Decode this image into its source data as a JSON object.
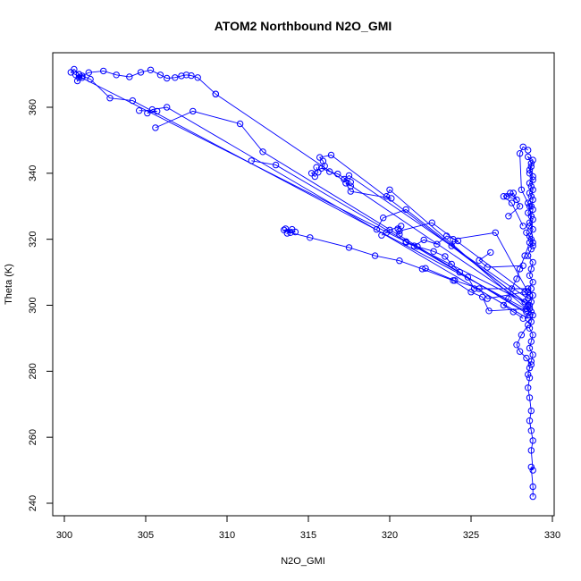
{
  "chart_data": {
    "type": "line",
    "title": "ATOM2 Northbound N2O_GMI",
    "xlabel": "N2O_GMI",
    "ylabel": "Theta (K)",
    "xlim": [
      300,
      330
    ],
    "ylim": [
      240,
      375
    ],
    "x_ticks": [
      300,
      305,
      310,
      315,
      320,
      325,
      330
    ],
    "y_ticks": [
      240,
      260,
      280,
      300,
      320,
      340,
      360
    ],
    "grid": false,
    "marker": "open-circle",
    "colors": {
      "series": "#0000ff",
      "axis": "#000000",
      "background": "#ffffff"
    },
    "series": [
      {
        "x": [
          328.8,
          328.8,
          328.7,
          328.8,
          328.7,
          328.8,
          328.7,
          328.6,
          328.7,
          328.6,
          328.5,
          328.6,
          328.5,
          328.6,
          328.7,
          328.8,
          328.6,
          328.7,
          328.8,
          328.6,
          328.7,
          328.8,
          328.6,
          328.7,
          328.8,
          328.5,
          328.8,
          328.6,
          328.7,
          328.8,
          328.5,
          328.7,
          328.8,
          328.6,
          328.8,
          328.6,
          328.7,
          328.8,
          328.5,
          328.7,
          328.8,
          328.6,
          328.8,
          328.6,
          328.7,
          328.5,
          328.8,
          328.7,
          328.6,
          328.8,
          328.7,
          328.6,
          328.8,
          328.7,
          328.5,
          328.8,
          328.6,
          328.4,
          328.7,
          328.8,
          328.6,
          328.1,
          328.0,
          328.2,
          328.5
        ],
        "y": [
          242,
          245,
          251,
          250,
          256,
          259,
          262,
          265,
          268,
          272,
          275,
          278,
          279,
          281,
          283,
          285,
          287,
          289,
          291,
          293,
          295,
          297,
          299,
          301,
          303,
          305,
          307,
          309,
          311,
          313,
          315,
          317,
          319,
          321,
          323,
          325,
          327,
          329,
          331,
          333,
          335,
          337,
          339,
          341,
          343,
          345,
          344,
          342,
          340,
          338,
          336,
          334,
          332,
          330,
          328,
          326,
          324,
          322,
          320,
          318,
          330,
          335,
          346,
          348,
          347
        ]
      },
      {
        "x": [
          328.2,
          327.5,
          327.0,
          327.4,
          327.8,
          327.2,
          327.6,
          328.0,
          327.3
        ],
        "y": [
          324,
          331,
          333,
          334,
          332,
          333,
          334,
          330,
          327
        ]
      },
      {
        "x": [
          328.6,
          328.3,
          328.0,
          327.8,
          327.5,
          327.3,
          327.0,
          327.6,
          328.2
        ],
        "y": [
          319,
          315,
          311,
          308,
          305,
          302,
          300,
          298,
          296
        ]
      },
      {
        "x": [
          328.5,
          328.1,
          327.8,
          328.0,
          328.4,
          328.7
        ],
        "y": [
          294,
          291,
          288,
          286,
          284,
          282
        ]
      },
      {
        "x": [
          328.6,
          316.4,
          315.7,
          315.9,
          316.0
        ],
        "y": [
          300,
          345.5,
          344.8,
          343.7,
          342.2
        ]
      },
      {
        "x": [
          328.5,
          317.5,
          317.2,
          317.6,
          316.8,
          316.3,
          315.8,
          315.2,
          315.4,
          315.6,
          315.5
        ],
        "y": [
          302,
          339.3,
          338.2,
          337.3,
          339.8,
          340.5,
          341.5,
          340.0,
          339.0,
          340.3,
          341.8
        ]
      },
      {
        "x": [
          328.4,
          320.0,
          319.8,
          320.1,
          317.6,
          317.3,
          317.6
        ],
        "y": [
          299,
          335.0,
          333.0,
          332.4,
          334.5,
          337.0,
          336.1
        ]
      },
      {
        "x": [
          328.3,
          321.0,
          319.6,
          319.2
        ],
        "y": [
          301,
          329.0,
          326.5,
          323.0
        ]
      },
      {
        "x": [
          328.6,
          322.6,
          320.6,
          320.6,
          320.5,
          320.7,
          320.0,
          319.8,
          319.5
        ],
        "y": [
          303,
          325.0,
          322.5,
          321.5,
          323.2,
          324.0,
          322.8,
          322.0,
          321.2
        ]
      },
      {
        "x": [
          328.5,
          326.5,
          323.9,
          323.8,
          324.2,
          323.5,
          322.9,
          322.1,
          321.5,
          321.0
        ],
        "y": [
          304,
          322.0,
          320.0,
          318.0,
          319.5,
          321.0,
          318.5,
          319.8,
          318.0,
          319.0
        ]
      },
      {
        "x": [
          328.7,
          325.2,
          324.8,
          324.3,
          323.8,
          323.4,
          322.7,
          321.7,
          321.0
        ],
        "y": [
          305,
          305.0,
          308.5,
          310.0,
          312.5,
          314.8,
          316.3,
          317.8,
          319.3
        ]
      },
      {
        "x": [
          328.2,
          326.0,
          325.5,
          326.2
        ],
        "y": [
          312,
          311.5,
          313.6,
          316.0
        ]
      },
      {
        "x": [
          328.3,
          326.0,
          325.5,
          324.0,
          322.2
        ],
        "y": [
          304,
          302.0,
          305.0,
          307.5,
          311.2
        ]
      },
      {
        "x": [
          328.6,
          326.1,
          325.7,
          325.0,
          323.9,
          322.0,
          320.6,
          319.1,
          317.5,
          315.1,
          313.9,
          313.5,
          314.0,
          313.7,
          314.2,
          313.6
        ],
        "y": [
          299,
          298.3,
          302.5,
          304.0,
          307.5,
          311.0,
          313.5,
          315.0,
          317.5,
          320.5,
          322.0,
          322.8,
          323.0,
          321.8,
          322.2,
          323.2
        ]
      },
      {
        "x": [
          328.4,
          313.0,
          311.5
        ],
        "y": [
          298,
          342.5,
          343.8
        ]
      },
      {
        "x": [
          328.6,
          312.2,
          310.8,
          307.9,
          305.6
        ],
        "y": [
          297,
          346.5,
          355.0,
          358.8,
          353.8
        ]
      },
      {
        "x": [
          328.5,
          306.3,
          305.4,
          305.1,
          305.7,
          304.6
        ],
        "y": [
          296,
          360.0,
          359.3,
          358.2,
          358.8,
          359.0
        ]
      },
      {
        "x": [
          328.7,
          304.2,
          302.8,
          301.6,
          301.1,
          300.8,
          300.9
        ],
        "y": [
          298,
          362.0,
          362.8,
          368.5,
          369.5,
          368.0,
          370.0
        ]
      },
      {
        "x": [
          328.3,
          300.4,
          300.6,
          300.9,
          301.1,
          300.7
        ],
        "y": [
          301,
          370.6,
          371.5,
          370.0,
          369.0,
          369.8
        ]
      },
      {
        "x": [
          300.9,
          301.5,
          302.4,
          303.2,
          304.0,
          304.7,
          305.3,
          305.9,
          306.3,
          306.8,
          307.2,
          307.5,
          307.8,
          308.2,
          309.3
        ],
        "y": [
          369.0,
          370.5,
          371.0,
          369.8,
          369.2,
          370.6,
          371.3,
          369.8,
          368.8,
          369.0,
          369.5,
          369.8,
          369.6,
          369.0,
          364.0
        ]
      },
      {
        "x": [
          309.3,
          328.5
        ],
        "y": [
          364.0,
          300.0
        ]
      }
    ]
  }
}
